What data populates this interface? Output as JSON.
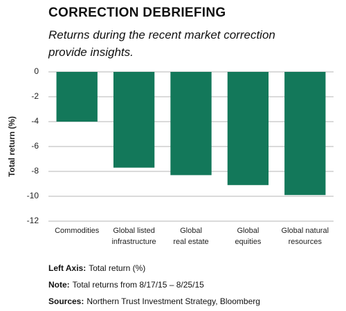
{
  "chart_data": {
    "type": "bar",
    "title": "CORRECTION DEBRIEFING",
    "subtitle": "Returns during the recent market correction provide insights.",
    "y_label": "Total return (%)",
    "categories": [
      "Commodities",
      "Global listed\ninfrastructure",
      "Global\nreal estate",
      "Global\nequities",
      "Global natural\nresources"
    ],
    "values": [
      -4.0,
      -7.7,
      -8.3,
      -9.1,
      -9.9
    ],
    "color": "#13785a",
    "ylim": [
      -12,
      0
    ],
    "yticks": [
      0,
      -2,
      -4,
      -6,
      -8,
      -10,
      -12
    ],
    "grid": true,
    "notes": [
      {
        "label": "Left Axis:",
        "text": "Total return (%)"
      },
      {
        "label": "Note:",
        "text": "Total returns from 8/17/15 – 8/25/15"
      },
      {
        "label": "Sources:",
        "text": "Northern Trust Investment Strategy, Bloomberg"
      }
    ]
  }
}
